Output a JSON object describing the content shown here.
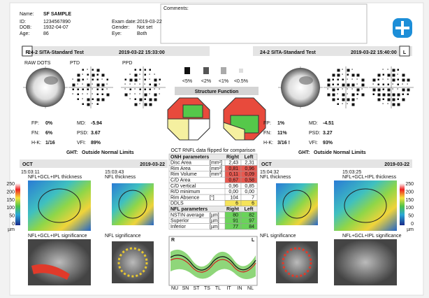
{
  "header": {
    "name_label": "Name:",
    "name": "SF SAMPLE",
    "id_label": "ID:",
    "id": "1234567890",
    "dob_label": "DOB:",
    "dob": "1932-04-07",
    "age_label": "Age:",
    "age": "86",
    "exam_date_label": "Exam date:",
    "exam_date": "2019-03-22",
    "gender_label": "Gender:",
    "gender": "Not set",
    "eye_label": "Eye:",
    "eye": "Both",
    "comments_label": "Comments:"
  },
  "od_field": {
    "eye": "R",
    "test": "24-2 SITA-Standard Test",
    "datetime": "2019-03-22 15:33:00",
    "plots": [
      "RAW DOTS",
      "PTD",
      "PPD"
    ],
    "stats": [
      {
        "label": "FP:",
        "value": "0%"
      },
      {
        "label": "FN:",
        "value": "6%"
      },
      {
        "label": "H-K:",
        "value": "1/16"
      },
      {
        "label": "MD:",
        "value": "-5.94"
      },
      {
        "label": "PSD:",
        "value": "3.67"
      },
      {
        "label": "VFI:",
        "value": "89%"
      }
    ],
    "ght": {
      "label": "GHT:",
      "value": "Outside Normal Limits"
    }
  },
  "os_field": {
    "eye": "L",
    "test": "24-2 SITA-Standard Test",
    "datetime": "2019-03-22 15:40:00",
    "stats": [
      {
        "label": "FP:",
        "value": "1%"
      },
      {
        "label": "FN:",
        "value": "11%"
      },
      {
        "label": "H-K:",
        "value": "3/16 !"
      },
      {
        "label": "MD:",
        "value": "-4.51"
      },
      {
        "label": "PSD:",
        "value": "3.27"
      },
      {
        "label": "VFI:",
        "value": "93%"
      }
    ],
    "ght": {
      "label": "GHT:",
      "value": "Outside Normal Limits"
    }
  },
  "legend": [
    "<5%",
    "<2%",
    "<1%",
    "<0.5%"
  ],
  "structure_function": "Structure Function",
  "od_oct": {
    "title": "OCT",
    "date": "2019-03-22",
    "times": [
      "15:03:11",
      "15:03:43"
    ],
    "maps": [
      "NFL+GCL+IPL thickness",
      "NFL thickness",
      "NFL+GCL+IPL significance",
      "NFL significance"
    ],
    "scale": [
      "250",
      "200",
      "150",
      "100",
      "50",
      "0"
    ],
    "unit": "µm"
  },
  "os_oct": {
    "title": "OCT",
    "date": "2019-03-22",
    "times": [
      "15:04:32",
      "15:03:25"
    ],
    "maps": [
      "NFL thickness",
      "NFL+GCL+IPL thickness",
      "NFL significance",
      "NFL+GCL+IPL significance"
    ],
    "scale": [
      "250",
      "200",
      "150",
      "100",
      "50",
      "0"
    ],
    "unit": "µm"
  },
  "table": {
    "note": "OCT RNFL data flipped for comparison",
    "onh_header": [
      "ONH parameters",
      "Right",
      "Left"
    ],
    "onh_rows": [
      {
        "cells": [
          "Disc Area",
          "[mm²]",
          "2,43",
          "2,31"
        ],
        "status": [
          "normal",
          "normal"
        ]
      },
      {
        "cells": [
          "Rim Area",
          "[mm²]",
          "0,81",
          "0,96"
        ],
        "status": [
          "red",
          "red"
        ]
      },
      {
        "cells": [
          "Rim Volume",
          "[mm³]",
          "0,11",
          "0,09"
        ],
        "status": [
          "red",
          "red"
        ]
      },
      {
        "cells": [
          "C/D Area",
          "",
          "0,67",
          "0,58"
        ],
        "status": [
          "red",
          "red"
        ]
      },
      {
        "cells": [
          "C/D vertical",
          "",
          "0,96",
          "0,85"
        ],
        "status": [
          "normal",
          "normal"
        ]
      },
      {
        "cells": [
          "R/D minimum",
          "",
          "0,00",
          "0,00"
        ],
        "status": [
          "normal",
          "normal"
        ]
      },
      {
        "cells": [
          "Rim Absence",
          "[°]",
          "104",
          "7"
        ],
        "status": [
          "normal",
          "normal"
        ]
      },
      {
        "cells": [
          "DDLS",
          "",
          "6",
          "6"
        ],
        "status": [
          "yellow",
          "yellow"
        ]
      }
    ],
    "nfl_header": [
      "NFL parameters",
      "Right",
      "Left"
    ],
    "nfl_rows": [
      {
        "cells": [
          "NSTIN average",
          "[µm]",
          "80",
          "82"
        ],
        "status": [
          "green",
          "green"
        ]
      },
      {
        "cells": [
          "Superior",
          "[µm]",
          "91",
          "97"
        ],
        "status": [
          "green",
          "green"
        ]
      },
      {
        "cells": [
          "Inferior",
          "[µm]",
          "77",
          "84"
        ],
        "status": [
          "green",
          "green"
        ]
      }
    ]
  },
  "graph": {
    "right": "R",
    "left": "L",
    "sectors": [
      "NU",
      "SN",
      "ST",
      "TS",
      "TL",
      "IT",
      "IN",
      "NL"
    ]
  }
}
